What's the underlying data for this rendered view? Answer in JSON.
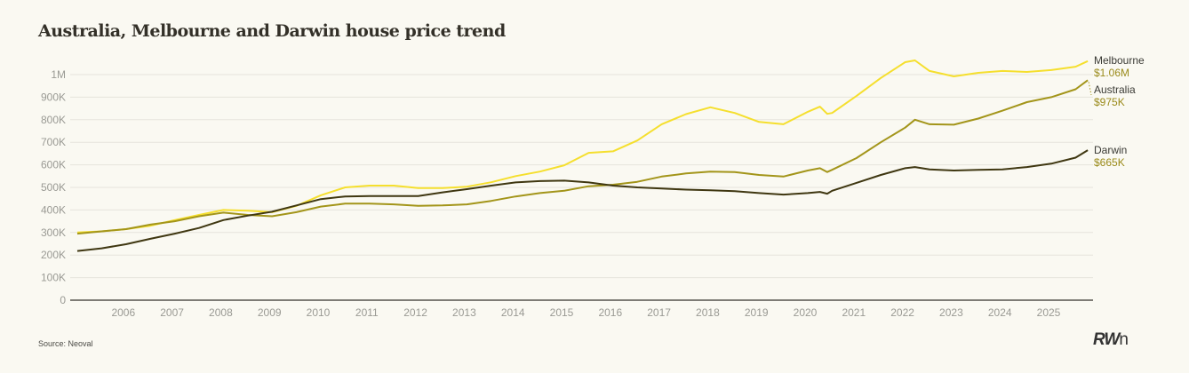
{
  "source": "Source: Neoval",
  "logo": {
    "bold": "RW",
    "light": "n",
    "dot": "."
  },
  "chart_data": {
    "type": "line",
    "title": "Australia, Melbourne and Darwin house price trend",
    "xlabel": "",
    "ylabel": "",
    "xlim": [
      2005.0,
      2025.85
    ],
    "ylim": [
      0,
      1000000
    ],
    "grid": true,
    "legend": "right-end-labels",
    "x_ticks": [
      2006,
      2007,
      2008,
      2009,
      2010,
      2011,
      2012,
      2013,
      2014,
      2015,
      2016,
      2017,
      2018,
      2019,
      2020,
      2021,
      2022,
      2023,
      2024,
      2025
    ],
    "y_ticks": [
      {
        "value": 0,
        "label": "0"
      },
      {
        "value": 100000,
        "label": "100K"
      },
      {
        "value": 200000,
        "label": "200K"
      },
      {
        "value": 300000,
        "label": "300K"
      },
      {
        "value": 400000,
        "label": "400K"
      },
      {
        "value": 500000,
        "label": "500K"
      },
      {
        "value": 600000,
        "label": "600K"
      },
      {
        "value": 700000,
        "label": "700K"
      },
      {
        "value": 800000,
        "label": "800K"
      },
      {
        "value": 900000,
        "label": "900K"
      },
      {
        "value": 1000000,
        "label": "1M"
      }
    ],
    "x": [
      2005.0,
      2005.5,
      2006.0,
      2006.5,
      2007.0,
      2007.5,
      2008.0,
      2008.5,
      2009.0,
      2009.5,
      2010.0,
      2010.5,
      2011.0,
      2011.5,
      2012.0,
      2012.5,
      2013.0,
      2013.5,
      2014.0,
      2014.5,
      2015.0,
      2015.5,
      2016.0,
      2016.5,
      2017.0,
      2017.5,
      2018.0,
      2018.5,
      2019.0,
      2019.5,
      2020.0,
      2020.25,
      2020.4,
      2020.5,
      2021.0,
      2021.5,
      2022.0,
      2022.2,
      2022.5,
      2023.0,
      2023.5,
      2024.0,
      2024.5,
      2025.0,
      2025.5,
      2025.75
    ],
    "series": [
      {
        "name": "Melbourne",
        "end_label": "$1.06M",
        "color": "#f5df2e",
        "values": [
          300000,
          305000,
          315000,
          330000,
          355000,
          378000,
          400000,
          397000,
          390000,
          418000,
          465000,
          500000,
          508000,
          508000,
          497000,
          497000,
          503000,
          523000,
          550000,
          570000,
          598000,
          653000,
          660000,
          708000,
          780000,
          825000,
          855000,
          830000,
          790000,
          780000,
          835000,
          858000,
          826000,
          830000,
          905000,
          985000,
          1055000,
          1063000,
          1016000,
          992000,
          1008000,
          1016000,
          1012000,
          1020000,
          1035000,
          1060000
        ]
      },
      {
        "name": "Australia",
        "end_label": "$975K",
        "color": "#a3951a",
        "values": [
          295000,
          305000,
          315000,
          335000,
          350000,
          372000,
          388000,
          378000,
          372000,
          390000,
          415000,
          428000,
          428000,
          425000,
          418000,
          420000,
          425000,
          440000,
          460000,
          475000,
          485000,
          505000,
          512000,
          525000,
          548000,
          562000,
          570000,
          568000,
          555000,
          548000,
          575000,
          585000,
          568000,
          578000,
          630000,
          700000,
          765000,
          800000,
          780000,
          778000,
          805000,
          840000,
          878000,
          900000,
          935000,
          975000
        ]
      },
      {
        "name": "Darwin",
        "end_label": "$665K",
        "color": "#3f3711",
        "values": [
          218000,
          230000,
          248000,
          272000,
          295000,
          320000,
          355000,
          375000,
          392000,
          420000,
          448000,
          460000,
          462000,
          462000,
          462000,
          478000,
          492000,
          508000,
          522000,
          528000,
          530000,
          522000,
          508000,
          500000,
          495000,
          490000,
          487000,
          483000,
          475000,
          468000,
          475000,
          480000,
          472000,
          485000,
          520000,
          555000,
          585000,
          590000,
          580000,
          575000,
          578000,
          580000,
          590000,
          605000,
          632000,
          665000
        ]
      }
    ]
  }
}
